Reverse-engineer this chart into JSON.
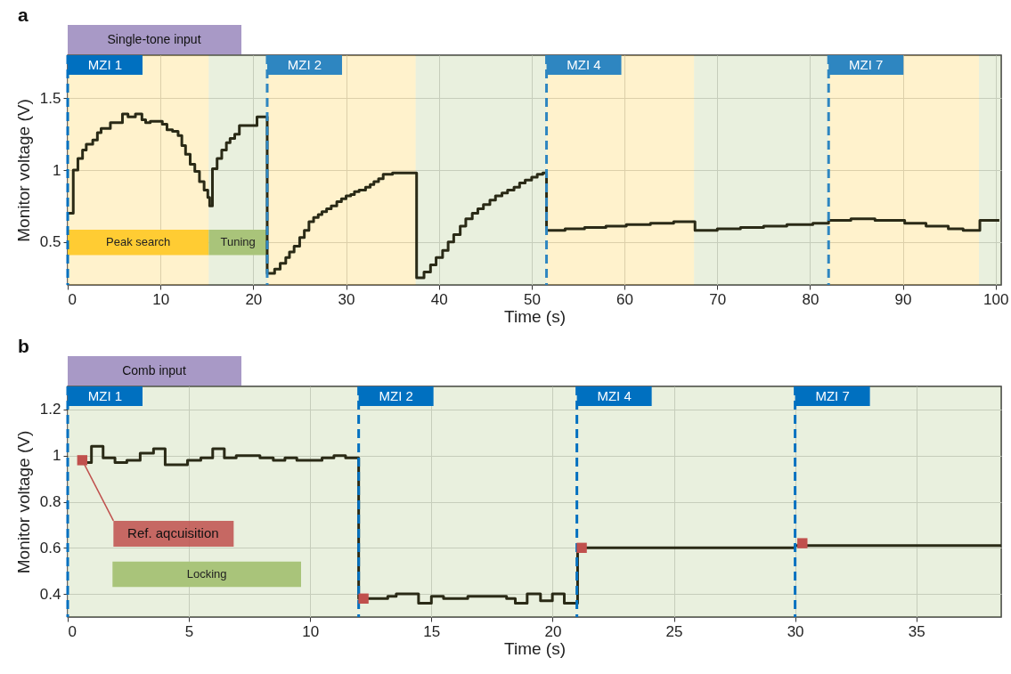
{
  "chart_data": [
    {
      "type": "step",
      "title": "a",
      "xlabel": "Time (s)",
      "ylabel": "Monitor voltage (V)",
      "xlim": [
        0,
        100.6
      ],
      "ylim": [
        0.2,
        1.8
      ],
      "xticks": [
        0,
        10,
        20,
        30,
        40,
        50,
        60,
        70,
        80,
        90,
        100
      ],
      "yticks": [
        0.5,
        1,
        1.5
      ],
      "grid": true,
      "annotations": [
        "Single-tone input"
      ],
      "bands": [
        {
          "axis": "x",
          "from": 0,
          "to": 15.2,
          "label": "Peak search",
          "color": "#ffcc33"
        },
        {
          "axis": "x",
          "from": 15.2,
          "to": 21.5,
          "label": "Tuning",
          "color": "#a9c47a"
        },
        {
          "axis": "x",
          "from": 21.5,
          "to": 37.5,
          "color": "#ffcc33"
        },
        {
          "axis": "x",
          "from": 37.5,
          "to": 51.6,
          "color": "#a9c47a"
        },
        {
          "axis": "x",
          "from": 51.6,
          "to": 67.5,
          "color": "#ffcc33"
        },
        {
          "axis": "x",
          "from": 67.5,
          "to": 82,
          "color": "#a9c47a"
        },
        {
          "axis": "x",
          "from": 82,
          "to": 98.2,
          "color": "#ffcc33"
        },
        {
          "axis": "x",
          "from": 98.2,
          "to": 100.6,
          "color": "#a9c47a"
        }
      ],
      "ref_lines": [
        {
          "axis": "x",
          "value": 0,
          "label": "MZI 1",
          "color": "#0070c0",
          "line_style": "dashed"
        },
        {
          "axis": "x",
          "value": 21.5,
          "label": "MZI 2",
          "color": "#2e86c1",
          "line_style": "dashed"
        },
        {
          "axis": "x",
          "value": 51.6,
          "label": "MZI 4",
          "color": "#2e86c1",
          "line_style": "dashed"
        },
        {
          "axis": "x",
          "value": 82,
          "label": "MZI 7",
          "color": "#2e86c1",
          "line_style": "dashed"
        }
      ],
      "series": [
        {
          "color": "#2a2a16",
          "x": [
            0,
            0.6,
            1.1,
            1.6,
            2.0,
            2.7,
            3.2,
            3.6,
            4.6,
            5.9,
            6.5,
            7.3,
            8.0,
            8.4,
            8.9,
            10.2,
            10.7,
            11.3,
            11.9,
            12.3,
            12.7,
            13.2,
            13.7,
            14.2,
            14.7,
            15.1,
            15.3,
            15.6,
            16.1,
            16.6,
            17.1,
            17.5,
            18.0,
            18.5,
            20.4,
            21.5,
            22.3,
            22.9,
            23.5,
            23.9,
            24.4,
            25.0,
            25.5,
            26.0,
            26.5,
            27.0,
            27.4,
            27.9,
            28.4,
            29.0,
            29.5,
            30.0,
            30.5,
            30.9,
            31.4,
            32.1,
            32.6,
            33.0,
            33.5,
            34.0,
            35.0,
            36.8,
            37.6,
            38.4,
            39.1,
            39.7,
            40.4,
            41.0,
            41.6,
            42.3,
            42.9,
            43.6,
            44.2,
            44.8,
            45.5,
            46.1,
            46.8,
            47.4,
            48.1,
            48.7,
            49.3,
            50.0,
            50.6,
            51.2,
            51.6,
            53.6,
            55.7,
            58.0,
            60.2,
            62.8,
            65.3,
            67.6,
            70.0,
            72.5,
            75.0,
            77.5,
            80.3,
            82.0,
            84.4,
            87.0,
            90.2,
            92.5,
            94.9,
            96.5,
            98.3,
            100.4
          ],
          "values": [
            0.7,
            1.0,
            1.08,
            1.14,
            1.18,
            1.21,
            1.26,
            1.29,
            1.33,
            1.39,
            1.37,
            1.39,
            1.35,
            1.33,
            1.34,
            1.32,
            1.28,
            1.27,
            1.24,
            1.17,
            1.11,
            1.04,
            0.99,
            0.92,
            0.86,
            0.81,
            0.75,
            1.01,
            1.08,
            1.14,
            1.19,
            1.22,
            1.25,
            1.31,
            1.37,
            0.28,
            0.31,
            0.35,
            0.39,
            0.43,
            0.47,
            0.53,
            0.58,
            0.64,
            0.67,
            0.69,
            0.71,
            0.73,
            0.75,
            0.78,
            0.8,
            0.82,
            0.83,
            0.85,
            0.86,
            0.88,
            0.9,
            0.92,
            0.94,
            0.97,
            0.98,
            0.98,
            0.25,
            0.29,
            0.34,
            0.39,
            0.44,
            0.5,
            0.55,
            0.61,
            0.66,
            0.7,
            0.73,
            0.76,
            0.79,
            0.82,
            0.84,
            0.86,
            0.88,
            0.91,
            0.93,
            0.95,
            0.97,
            0.98,
            0.58,
            0.59,
            0.6,
            0.61,
            0.62,
            0.63,
            0.64,
            0.58,
            0.59,
            0.6,
            0.61,
            0.62,
            0.63,
            0.65,
            0.66,
            0.65,
            0.63,
            0.61,
            0.59,
            0.58,
            0.65,
            0.65
          ]
        }
      ]
    },
    {
      "type": "step",
      "title": "b",
      "xlabel": "Time (s)",
      "ylabel": "Monitor voltage (V)",
      "xlim": [
        0,
        38.5
      ],
      "ylim": [
        0.3,
        1.3
      ],
      "xticks": [
        0,
        5,
        10,
        15,
        20,
        25,
        30,
        35
      ],
      "yticks": [
        0.4,
        0.6,
        0.8,
        1,
        1.2
      ],
      "grid": true,
      "annotations": [
        "Comb input"
      ],
      "bands": [
        {
          "axis": "x",
          "from": 0,
          "to": 38.5,
          "label": "Locking",
          "color": "#a9c47a"
        }
      ],
      "ref_lines": [
        {
          "axis": "x",
          "value": 0,
          "label": "MZI 1",
          "color": "#0070c0",
          "line_style": "dashed"
        },
        {
          "axis": "x",
          "value": 12,
          "label": "MZI 2",
          "color": "#0070c0",
          "line_style": "dashed"
        },
        {
          "axis": "x",
          "value": 21,
          "label": "MZI 4",
          "color": "#0070c0",
          "line_style": "dashed"
        },
        {
          "axis": "x",
          "value": 30,
          "label": "MZI 7",
          "color": "#0070c0",
          "line_style": "dashed"
        }
      ],
      "series": [
        {
          "color": "#2a2a16",
          "x": [
            0.6,
            0.98,
            1.46,
            1.95,
            2.44,
            2.99,
            3.54,
            4.02,
            4.57,
            4.94,
            5.49,
            5.98,
            6.46,
            6.95,
            7.44,
            7.93,
            8.48,
            8.96,
            9.45,
            10.49,
            10.98,
            11.46,
            12.0,
            13.2,
            13.55,
            13.98,
            14.47,
            15.0,
            15.5,
            16.5,
            17.0,
            18.1,
            18.46,
            18.95,
            19.5,
            19.99,
            20.48,
            21.03,
            30.0,
            38.5
          ],
          "values": [
            0.97,
            1.04,
            0.99,
            0.97,
            0.98,
            1.01,
            1.03,
            0.96,
            0.96,
            0.98,
            0.99,
            1.03,
            0.99,
            1.0,
            1.0,
            0.99,
            0.98,
            0.99,
            0.98,
            0.99,
            1.0,
            0.99,
            0.38,
            0.39,
            0.4,
            0.4,
            0.36,
            0.39,
            0.38,
            0.39,
            0.39,
            0.38,
            0.36,
            0.4,
            0.37,
            0.4,
            0.36,
            0.6,
            0.61,
            0.61
          ]
        },
        {
          "type": "scatter",
          "name": "Ref. aqcuisition",
          "color": "#c0504d",
          "marker": "square",
          "x": [
            0.6,
            12.2,
            21.2,
            30.3
          ],
          "values": [
            0.98,
            0.38,
            0.6,
            0.62
          ]
        }
      ]
    }
  ]
}
